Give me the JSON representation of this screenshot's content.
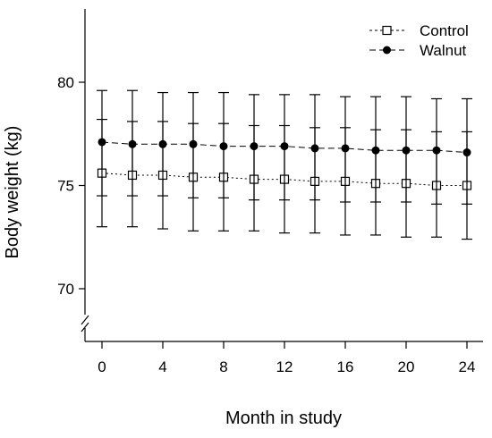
{
  "chart_data": {
    "type": "line",
    "xlabel": "Month in study",
    "ylabel": "Body weight (kg)",
    "x": [
      0,
      2,
      4,
      6,
      8,
      10,
      12,
      14,
      16,
      18,
      20,
      22,
      24
    ],
    "x_ticks": [
      0,
      4,
      8,
      12,
      16,
      20,
      24
    ],
    "y_ticks": [
      70,
      75,
      80
    ],
    "xlim": [
      -1,
      25
    ],
    "ylim": [
      67.5,
      83.5
    ],
    "y_axis_break": true,
    "grid": false,
    "legend_position": "top-right",
    "series": [
      {
        "name": "Control",
        "marker": "open-square",
        "line_style": "dotted",
        "color": "#000000",
        "values": [
          75.6,
          75.5,
          75.5,
          75.4,
          75.4,
          75.3,
          75.3,
          75.2,
          75.2,
          75.1,
          75.1,
          75.0,
          75.0
        ],
        "error_low": [
          73.0,
          73.0,
          72.9,
          72.8,
          72.8,
          72.8,
          72.7,
          72.7,
          72.6,
          72.6,
          72.5,
          72.5,
          72.4
        ],
        "error_high": [
          78.2,
          78.1,
          78.1,
          78.0,
          78.0,
          77.9,
          77.9,
          77.8,
          77.8,
          77.7,
          77.7,
          77.6,
          77.6
        ]
      },
      {
        "name": "Walnut",
        "marker": "filled-circle",
        "line_style": "dashed",
        "color": "#000000",
        "values": [
          77.1,
          77.0,
          77.0,
          77.0,
          76.9,
          76.9,
          76.9,
          76.8,
          76.8,
          76.7,
          76.7,
          76.7,
          76.6
        ],
        "error_low": [
          74.5,
          74.5,
          74.5,
          74.4,
          74.4,
          74.3,
          74.3,
          74.3,
          74.2,
          74.2,
          74.2,
          74.1,
          74.1
        ],
        "error_high": [
          79.6,
          79.6,
          79.5,
          79.5,
          79.5,
          79.4,
          79.4,
          79.4,
          79.3,
          79.3,
          79.3,
          79.2,
          79.2
        ]
      }
    ]
  }
}
